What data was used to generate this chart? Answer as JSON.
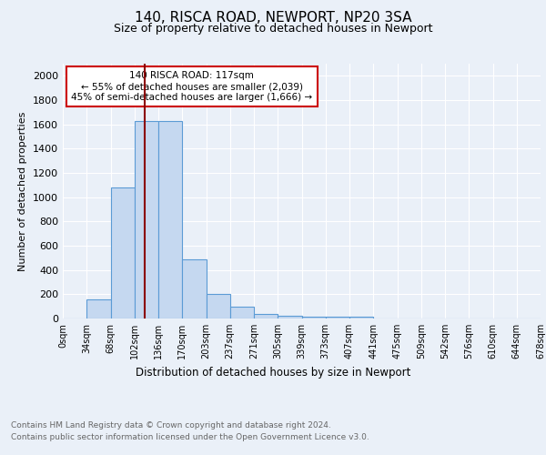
{
  "title1": "140, RISCA ROAD, NEWPORT, NP20 3SA",
  "title2": "Size of property relative to detached houses in Newport",
  "xlabel": "Distribution of detached houses by size in Newport",
  "ylabel": "Number of detached properties",
  "bin_labels": [
    "0sqm",
    "34sqm",
    "68sqm",
    "102sqm",
    "136sqm",
    "170sqm",
    "203sqm",
    "237sqm",
    "271sqm",
    "305sqm",
    "339sqm",
    "373sqm",
    "407sqm",
    "441sqm",
    "475sqm",
    "509sqm",
    "542sqm",
    "576sqm",
    "610sqm",
    "644sqm",
    "678sqm"
  ],
  "bar_values": [
    0,
    160,
    1080,
    1625,
    1625,
    485,
    200,
    100,
    40,
    25,
    15,
    15,
    15,
    0,
    0,
    0,
    0,
    0,
    0,
    0
  ],
  "bar_color": "#c5d8f0",
  "bar_edge_color": "#5b9bd5",
  "vline_color": "#8b0000",
  "annotation_text": "140 RISCA ROAD: 117sqm\n← 55% of detached houses are smaller (2,039)\n45% of semi-detached houses are larger (1,666) →",
  "annotation_box_color": "#ffffff",
  "annotation_box_edge": "#cc0000",
  "ylim": [
    0,
    2100
  ],
  "yticks": [
    0,
    200,
    400,
    600,
    800,
    1000,
    1200,
    1400,
    1600,
    1800,
    2000
  ],
  "footer1": "Contains HM Land Registry data © Crown copyright and database right 2024.",
  "footer2": "Contains public sector information licensed under the Open Government Licence v3.0.",
  "bg_color": "#eaf0f8",
  "plot_bg_color": "#eaf0f8"
}
